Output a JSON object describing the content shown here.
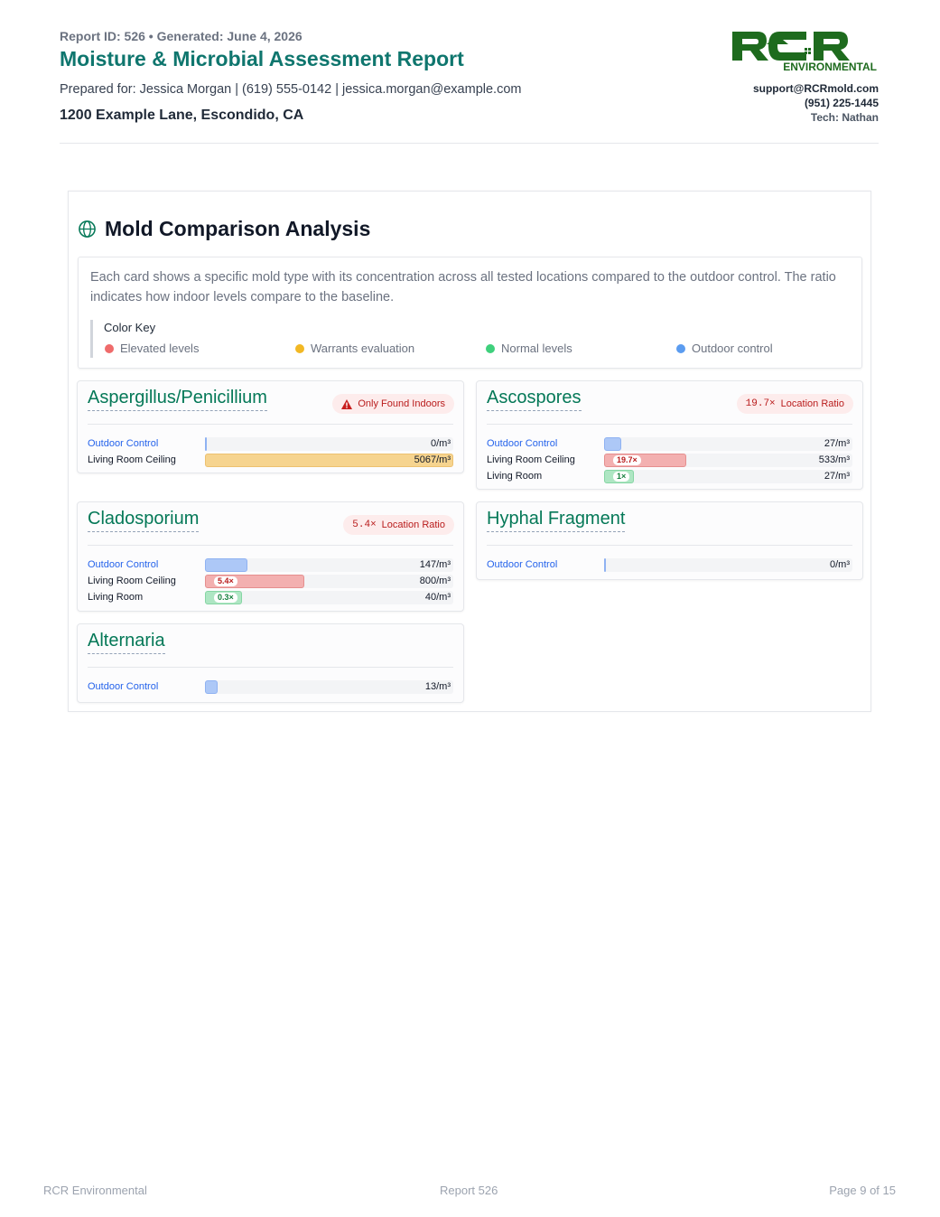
{
  "header": {
    "meta": "Report ID: 526 • Generated: June 4, 2026",
    "title": "Moisture & Microbial Assessment Report",
    "prepared": "Prepared for: Jessica Morgan | (619) 555-0142 | jessica.morgan@example.com",
    "address": "1200 Example Lane, Escondido, CA",
    "logo_text": "RCR",
    "logo_sub": "ENVIRONMENTAL",
    "email": "support@RCRmold.com",
    "phone": "(951) 225-1445",
    "tech": "Tech: Nathan"
  },
  "section": {
    "title": "Mold Comparison Analysis",
    "icon": "globe-icon",
    "intro": "Each card shows a specific mold type with its concentration across all tested locations compared to the outdoor control. The ratio indicates how indoor levels compare to the baseline.",
    "key_title": "Color Key",
    "key": [
      {
        "label": "Elevated levels",
        "color": "#ef6b6b"
      },
      {
        "label": "Warrants evaluation",
        "color": "#f2b824"
      },
      {
        "label": "Normal levels",
        "color": "#3fd07c"
      },
      {
        "label": "Outdoor control",
        "color": "#5b9cf0"
      }
    ]
  },
  "cards": [
    {
      "name": "Aspergillus/Penicillium",
      "badge": {
        "type": "indoor",
        "text": "Only Found Indoors"
      },
      "rows": [
        {
          "location": "Outdoor Control",
          "control": true,
          "value": "0/m³",
          "fill": 0.0,
          "color": "blue",
          "ratio": ""
        },
        {
          "location": "Living Room Ceiling",
          "control": false,
          "value": "5067/m³",
          "fill": 1.0,
          "color": "amber",
          "ratio": ""
        }
      ]
    },
    {
      "name": "Ascospores",
      "badge": {
        "type": "ratio",
        "ratio": "19.7×",
        "text": "Location Ratio"
      },
      "rows": [
        {
          "location": "Outdoor Control",
          "control": true,
          "value": "27/m³",
          "fill": 0.07,
          "color": "blue",
          "ratio": ""
        },
        {
          "location": "Living Room Ceiling",
          "control": false,
          "value": "533/m³",
          "fill": 0.33,
          "color": "red",
          "ratio": "19.7×"
        },
        {
          "location": "Living Room",
          "control": false,
          "value": "27/m³",
          "fill": 0.12,
          "color": "green",
          "ratio": "1×"
        }
      ]
    },
    {
      "name": "Cladosporium",
      "badge": {
        "type": "ratio",
        "ratio": "5.4×",
        "text": "Location Ratio"
      },
      "rows": [
        {
          "location": "Outdoor Control",
          "control": true,
          "value": "147/m³",
          "fill": 0.17,
          "color": "blue",
          "ratio": ""
        },
        {
          "location": "Living Room Ceiling",
          "control": false,
          "value": "800/m³",
          "fill": 0.4,
          "color": "red",
          "ratio": "5.4×"
        },
        {
          "location": "Living Room",
          "control": false,
          "value": "40/m³",
          "fill": 0.15,
          "color": "green",
          "ratio": "0.3×"
        }
      ]
    },
    {
      "name": "Hyphal Fragment",
      "badge": null,
      "rows": [
        {
          "location": "Outdoor Control",
          "control": true,
          "value": "0/m³",
          "fill": 0.0,
          "color": "blue",
          "ratio": ""
        }
      ]
    },
    {
      "name": "Alternaria",
      "badge": null,
      "rows": [
        {
          "location": "Outdoor Control",
          "control": true,
          "value": "13/m³",
          "fill": 0.05,
          "color": "blue",
          "ratio": ""
        }
      ]
    }
  ],
  "footer": {
    "company": "RCR Environmental",
    "report": "Report 526",
    "page": "Page 9 of 15"
  }
}
